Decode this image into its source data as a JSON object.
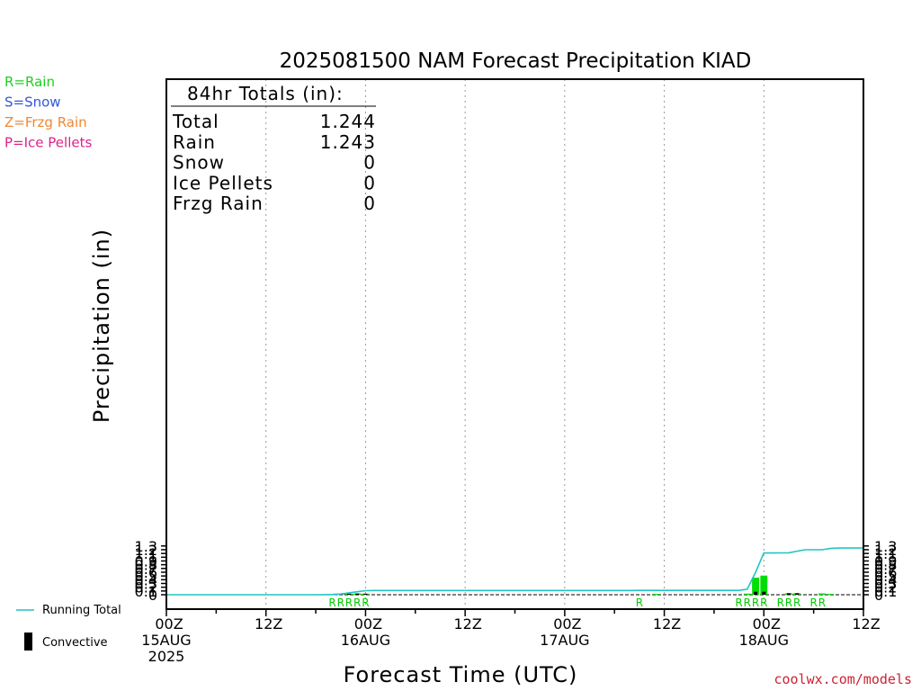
{
  "legend_types": [
    {
      "label": "R=Rain",
      "color": "#22cc22"
    },
    {
      "label": "S=Snow",
      "color": "#3355dd"
    },
    {
      "label": "Z=Frzg Rain",
      "color": "#ee8833"
    },
    {
      "label": "P=Ice Pellets",
      "color": "#dd2288"
    }
  ],
  "bottom_legend": {
    "running_total": "Running Total",
    "convective": "Convective"
  },
  "totals_box": {
    "header": "84hr Totals (in):",
    "rows": [
      {
        "label": "Total",
        "value": "1.244"
      },
      {
        "label": "Rain",
        "value": "1.243"
      },
      {
        "label": "Snow",
        "value": "0"
      },
      {
        "label": "Ice Pellets",
        "value": "0"
      },
      {
        "label": "Frzg Rain",
        "value": "0"
      }
    ]
  },
  "credit": "coolwx.com/models",
  "colors": {
    "rain_bar": "#00dd00",
    "convective_bar": "#000000",
    "running_total": "#22c4c4",
    "grid": "#999999"
  },
  "chart_data": {
    "type": "bar",
    "title": "2025081500 NAM Forecast Precipitation KIAD",
    "xlabel": "Forecast Time (UTC)",
    "ylabel": "Precipitation (in)",
    "x_unit": "forecast hour",
    "xlim": [
      0,
      84
    ],
    "ylim": [
      0,
      1.35
    ],
    "y_ticks": [
      "0",
      "0.1",
      "0.2",
      "0.3",
      "0.4",
      "0.5",
      "0.6",
      "0.7",
      "0.8",
      "0.9",
      "1",
      "1.1",
      "1.2",
      "1.3"
    ],
    "x_ticks": [
      {
        "hour": 0,
        "lines": [
          "00Z",
          "15AUG",
          "2025"
        ]
      },
      {
        "hour": 12,
        "lines": [
          "12Z"
        ]
      },
      {
        "hour": 24,
        "lines": [
          "00Z",
          "16AUG"
        ]
      },
      {
        "hour": 36,
        "lines": [
          "12Z"
        ]
      },
      {
        "hour": 48,
        "lines": [
          "00Z",
          "17AUG"
        ]
      },
      {
        "hour": 60,
        "lines": [
          "12Z"
        ]
      },
      {
        "hour": 72,
        "lines": [
          "00Z",
          "18AUG"
        ]
      },
      {
        "hour": 84,
        "lines": [
          "12Z"
        ]
      }
    ],
    "grid_hours": [
      12,
      24,
      36,
      48,
      60,
      72
    ],
    "series": [
      {
        "name": "Rain",
        "hours": [
          20,
          21,
          22,
          23,
          24,
          59,
          70,
          71,
          72,
          75,
          76,
          79,
          80
        ],
        "values": [
          0.005,
          0.015,
          0.03,
          0.035,
          0.03,
          0.002,
          0.03,
          0.455,
          0.51,
          0.04,
          0.04,
          0.035,
          0.01
        ]
      },
      {
        "name": "Convective",
        "hours": [
          20,
          21,
          22,
          23,
          24,
          71,
          72,
          75,
          76
        ],
        "values": [
          0.005,
          0.01,
          0.025,
          0.03,
          0.025,
          0.08,
          0.08,
          0.04,
          0.04
        ]
      },
      {
        "name": "Running Total",
        "hours": [
          0,
          18,
          19,
          20,
          21,
          22,
          23,
          24,
          25,
          36,
          48,
          56,
          57,
          60,
          63,
          66,
          68,
          69,
          70,
          71,
          72,
          73,
          74,
          75,
          76,
          77,
          78,
          79,
          80,
          81,
          82,
          83,
          84
        ],
        "values": [
          0,
          0,
          0.002,
          0.008,
          0.02,
          0.05,
          0.08,
          0.108,
          0.112,
          0.112,
          0.112,
          0.112,
          0.114,
          0.114,
          0.114,
          0.114,
          0.114,
          0.114,
          0.146,
          0.6,
          1.112,
          1.113,
          1.115,
          1.118,
          1.16,
          1.198,
          1.198,
          1.198,
          1.232,
          1.244,
          1.244,
          1.244,
          1.244
        ]
      }
    ],
    "ptype_labels": [
      {
        "hour": 20,
        "text": "R"
      },
      {
        "hour": 21,
        "text": "R"
      },
      {
        "hour": 22,
        "text": "R"
      },
      {
        "hour": 23,
        "text": "R"
      },
      {
        "hour": 24,
        "text": "R"
      },
      {
        "hour": 57,
        "text": "R"
      },
      {
        "hour": 69,
        "text": "R"
      },
      {
        "hour": 70,
        "text": "R"
      },
      {
        "hour": 71,
        "text": "R"
      },
      {
        "hour": 72,
        "text": "R"
      },
      {
        "hour": 74,
        "text": "R"
      },
      {
        "hour": 75,
        "text": "R"
      },
      {
        "hour": 76,
        "text": "R"
      },
      {
        "hour": 78,
        "text": "R"
      },
      {
        "hour": 79,
        "text": "R"
      }
    ]
  }
}
